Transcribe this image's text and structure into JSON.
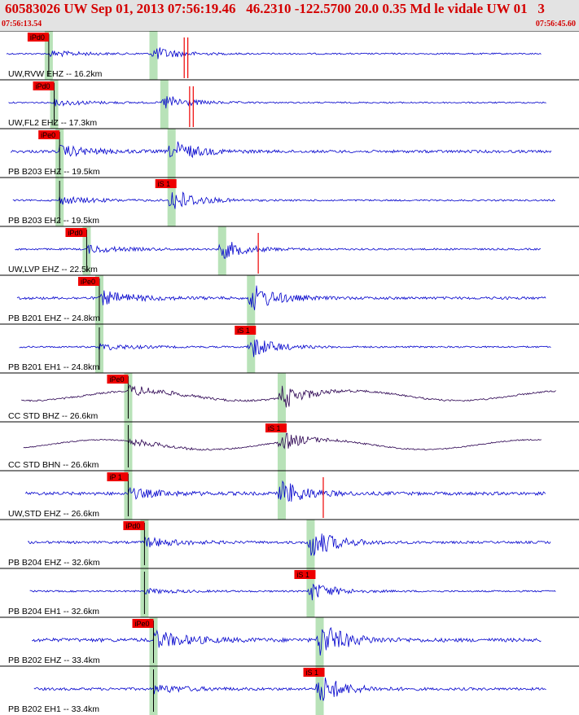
{
  "header": {
    "title": "60583026 UW Sep 01, 2013 07:56:19.46   46.2310 -122.5700 20.0 0.35 Md le vidale UW 01   3",
    "time_start": "07:56:13.54",
    "time_end": "07:56:45.60"
  },
  "colors": {
    "header_text": "#d40000",
    "header_bg": "#e3e3e3",
    "trace_blue": "#0000cc",
    "trace_purple": "#2a0050",
    "pick_box": "#ee0000",
    "arrival_band": "#b8e2b8"
  },
  "chart_data": {
    "type": "seismogram",
    "time_range": [
      "07:56:13.54",
      "07:56:45.60"
    ],
    "traces": [
      {
        "label": "UW,RVW EHZ -- 16.2km",
        "pick": "iPd0",
        "p_arrival": 0.27,
        "s_arrival": 0.85,
        "coda_start": 0.88,
        "coda_end": 0.1,
        "color": "blue",
        "amp": 4,
        "noise": 0.9,
        "burst": 9,
        "burst_at": 0.88,
        "red_marks": [
          1.04,
          1.02
        ]
      },
      {
        "label": "UW,FL2 EHZ -- 17.3km",
        "pick": "iPd0",
        "p_arrival": 0.3,
        "s_arrival": 0.91,
        "coda_start": 0.9,
        "coda_end": 0.1,
        "color": "blue",
        "amp": 4,
        "noise": 0.9,
        "burst": 10,
        "burst_at": 0.28,
        "red_marks": [
          1.07,
          1.05
        ]
      },
      {
        "label": "PB B203 EHZ -- 19.5km",
        "pick": "iPe0",
        "p_arrival": 0.33,
        "s_arrival": 0.95,
        "coda_start": 0.95,
        "coda_end": 0.06,
        "color": "blue",
        "amp": 7,
        "noise": 1.7,
        "burst": 14,
        "burst_at": 0.95,
        "red_marks": []
      },
      {
        "label": "PB B203 EH2 -- 19.5km",
        "pick": "iS 1",
        "p_arrival": 0.33,
        "s_arrival": 0.95,
        "coda_start": 0.95,
        "coda_end": 0.06,
        "color": "blue",
        "amp": 5,
        "noise": 1.0,
        "burst": 16,
        "burst_at": 0.95,
        "red_marks": []
      },
      {
        "label": "UW,LVP EHZ -- 22.5km",
        "pick": "iPd0",
        "p_arrival": 0.48,
        "s_arrival": 1.23,
        "coda_start": 1.24,
        "coda_end": 0.13,
        "color": "blue",
        "amp": 5,
        "noise": 1.1,
        "burst": 12,
        "burst_at": 1.24,
        "red_marks": [
          1.43
        ]
      },
      {
        "label": "PB B201 EHZ -- 24.8km",
        "pick": "iPe0",
        "p_arrival": 0.55,
        "s_arrival": 1.39,
        "coda_start": 1.36,
        "coda_end": 0.05,
        "color": "blue",
        "amp": 9,
        "noise": 1.6,
        "burst": 18,
        "burst_at": 1.38,
        "red_marks": []
      },
      {
        "label": "PB B201 EH1 -- 24.8km",
        "pick": "iS 1",
        "p_arrival": 0.55,
        "s_arrival": 1.39,
        "coda_start": 1.36,
        "coda_end": 0.05,
        "color": "blue",
        "amp": 4,
        "noise": 1.0,
        "burst": 14,
        "burst_at": 1.38,
        "red_marks": []
      },
      {
        "label": "CC STD BHZ -- 26.6km",
        "pick": "iPe0",
        "p_arrival": 0.71,
        "s_arrival": 1.56,
        "coda_start": 1.55,
        "coda_end": 0.12,
        "color": "purple",
        "amp": 7,
        "noise": 1.0,
        "burst": 15,
        "burst_at": 0.71,
        "red_marks": []
      },
      {
        "label": "CC STD BHN -- 26.6km",
        "pick": "iS 1",
        "p_arrival": 0.71,
        "s_arrival": 1.56,
        "coda_start": 1.55,
        "coda_end": 0.12,
        "color": "purple",
        "amp": 5,
        "noise": 0.7,
        "burst": 12,
        "burst_at": 1.56,
        "red_marks": []
      },
      {
        "label": "UW,STD EHZ -- 26.6km",
        "pick": "iP 1",
        "p_arrival": 0.71,
        "s_arrival": 1.56,
        "coda_start": 1.55,
        "coda_end": 0.12,
        "color": "blue",
        "amp": 6,
        "noise": 2.0,
        "burst": 16,
        "burst_at": 1.57,
        "red_marks": [
          1.79
        ]
      },
      {
        "label": "PB B204 EHZ -- 32.6km",
        "pick": "iPd0",
        "p_arrival": 0.8,
        "s_arrival": 1.72,
        "coda_start": 1.72,
        "coda_end": 0.06,
        "color": "blue",
        "amp": 6,
        "noise": 1.5,
        "burst": 20,
        "burst_at": 1.72,
        "red_marks": []
      },
      {
        "label": "PB B204 EH1 -- 32.6km",
        "pick": "iS 1",
        "p_arrival": 0.8,
        "s_arrival": 1.72,
        "coda_start": 1.72,
        "coda_end": 0.06,
        "color": "blue",
        "amp": 3,
        "noise": 1.0,
        "burst": 12,
        "burst_at": 1.72,
        "red_marks": []
      },
      {
        "label": "PB B202 EHZ -- 33.4km",
        "pick": "iPe0",
        "p_arrival": 0.85,
        "s_arrival": 1.77,
        "coda_start": 1.76,
        "coda_end": 0.03,
        "color": "blue",
        "amp": 11,
        "noise": 2.2,
        "burst": 22,
        "burst_at": 1.77,
        "red_marks": []
      },
      {
        "label": "PB B202 EH1 -- 33.4km",
        "pick": "iS 1",
        "p_arrival": 0.85,
        "s_arrival": 1.77,
        "coda_start": 1.76,
        "coda_end": 0.03,
        "color": "blue",
        "amp": 5,
        "noise": 1.6,
        "burst": 18,
        "burst_at": 1.77,
        "red_marks": []
      }
    ]
  }
}
